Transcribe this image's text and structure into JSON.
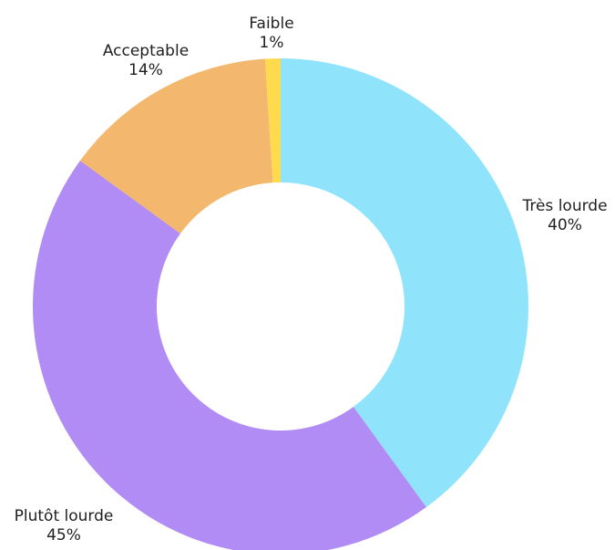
{
  "chart_data": {
    "type": "pie",
    "variant": "donut",
    "title": "",
    "legend": "none",
    "slices": [
      {
        "label": "Très lourde",
        "value": 40,
        "value_label": "40%",
        "color": "#8fe4fc"
      },
      {
        "label": "Plutôt lourde",
        "value": 45,
        "value_label": "45%",
        "color": "#b08cf4"
      },
      {
        "label": "Acceptable",
        "value": 14,
        "value_label": "14%",
        "color": "#f3b76d"
      },
      {
        "label": "Faible",
        "value": 1,
        "value_label": "1%",
        "color": "#fedb4d"
      }
    ]
  }
}
